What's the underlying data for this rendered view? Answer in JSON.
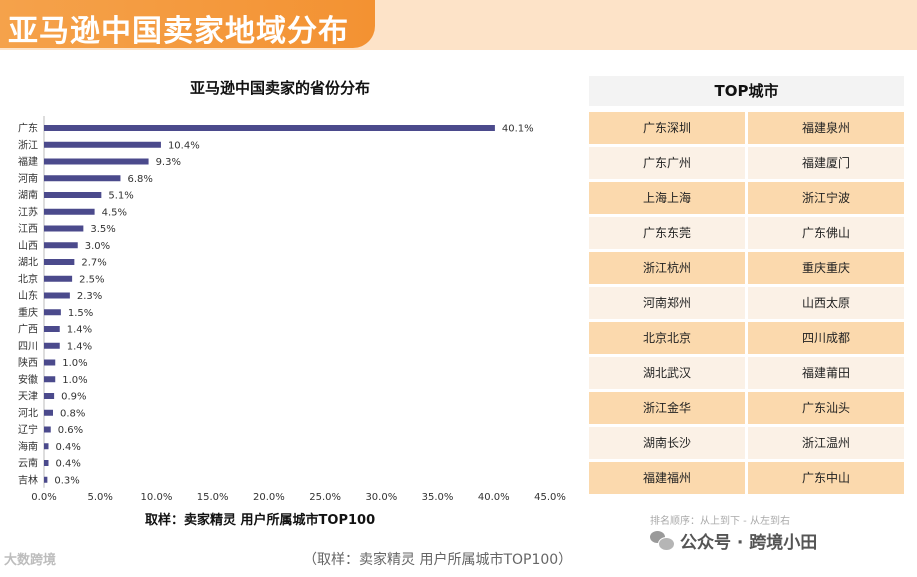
{
  "banner": {
    "title": "亚马逊中国卖家地域分布"
  },
  "chart_data": {
    "type": "bar",
    "orientation": "horizontal",
    "title": "亚马逊中国卖家的省份分布",
    "categories": [
      "广东",
      "浙江",
      "福建",
      "河南",
      "湖南",
      "江苏",
      "江西",
      "山西",
      "湖北",
      "北京",
      "山东",
      "重庆",
      "广西",
      "四川",
      "陕西",
      "安徽",
      "天津",
      "河北",
      "辽宁",
      "海南",
      "云南",
      "吉林"
    ],
    "values": [
      40.1,
      10.4,
      9.3,
      6.8,
      5.1,
      4.5,
      3.5,
      3.0,
      2.7,
      2.5,
      2.3,
      1.5,
      1.4,
      1.4,
      1.0,
      1.0,
      0.9,
      0.8,
      0.6,
      0.4,
      0.4,
      0.3
    ],
    "value_labels": [
      "40.1%",
      "10.4%",
      "9.3%",
      "6.8%",
      "5.1%",
      "4.5%",
      "3.5%",
      "3.0%",
      "2.7%",
      "2.5%",
      "2.3%",
      "1.5%",
      "1.4%",
      "1.4%",
      "1.0%",
      "1.0%",
      "0.9%",
      "0.8%",
      "0.6%",
      "0.4%",
      "0.4%",
      "0.3%"
    ],
    "x_ticks": [
      "0.0%",
      "5.0%",
      "10.0%",
      "15.0%",
      "20.0%",
      "25.0%",
      "30.0%",
      "35.0%",
      "40.0%",
      "45.0%"
    ],
    "xlim": [
      0,
      45
    ],
    "bar_color": "#4b4a8c",
    "grid": false,
    "source": "取样：卖家精灵 用户所属城市TOP100"
  },
  "top_cities": {
    "title": "TOP城市",
    "rows": [
      [
        "广东深圳",
        "福建泉州"
      ],
      [
        "广东广州",
        "福建厦门"
      ],
      [
        "上海上海",
        "浙江宁波"
      ],
      [
        "广东东莞",
        "广东佛山"
      ],
      [
        "浙江杭州",
        "重庆重庆"
      ],
      [
        "河南郑州",
        "山西太原"
      ],
      [
        "北京北京",
        "四川成都"
      ],
      [
        "湖北武汉",
        "福建莆田"
      ],
      [
        "浙江金华",
        "广东汕头"
      ],
      [
        "湖南长沙",
        "浙江温州"
      ],
      [
        "福建福州",
        "广东中山"
      ]
    ],
    "order_note": "排名顺序：从上到下 - 从左到右"
  },
  "footer": {
    "source": "（取样：卖家精灵 用户所属城市TOP100）",
    "brand_left": "大数跨境",
    "brand_right": "公众号 · 跨境小田"
  }
}
